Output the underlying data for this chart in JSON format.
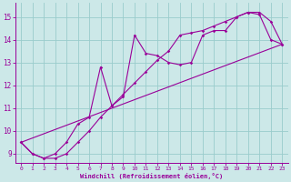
{
  "xlabel": "Windchill (Refroidissement éolien,°C)",
  "background_color": "#cce8e8",
  "line_color": "#990099",
  "grid_color": "#99cccc",
  "xlim": [
    -0.5,
    23.5
  ],
  "ylim": [
    8.6,
    15.6
  ],
  "xticks": [
    0,
    1,
    2,
    3,
    4,
    5,
    6,
    7,
    8,
    9,
    10,
    11,
    12,
    13,
    14,
    15,
    16,
    17,
    18,
    19,
    20,
    21,
    22,
    23
  ],
  "yticks": [
    9,
    10,
    11,
    12,
    13,
    14,
    15
  ],
  "line1_x": [
    0,
    1,
    2,
    3,
    4,
    5,
    6,
    7,
    8,
    9,
    10,
    11,
    12,
    13,
    14,
    15,
    16,
    17,
    18,
    19,
    20,
    21,
    22,
    23
  ],
  "line1_y": [
    9.5,
    9.0,
    8.8,
    8.8,
    9.0,
    9.5,
    10.0,
    10.6,
    11.1,
    11.6,
    12.1,
    12.6,
    13.1,
    13.5,
    14.2,
    14.3,
    14.4,
    14.6,
    14.8,
    15.0,
    15.2,
    15.1,
    14.0,
    13.8
  ],
  "line2_x": [
    0,
    1,
    2,
    3,
    4,
    5,
    6,
    7,
    8,
    9,
    10,
    11,
    12,
    13,
    14,
    15,
    16,
    17,
    18,
    19,
    20,
    21,
    22,
    23
  ],
  "line2_y": [
    9.5,
    9.0,
    8.8,
    9.0,
    9.5,
    10.3,
    10.6,
    12.8,
    11.1,
    11.5,
    14.2,
    13.4,
    13.3,
    13.0,
    12.9,
    13.0,
    14.2,
    14.4,
    14.4,
    15.0,
    15.2,
    15.2,
    14.8,
    13.8
  ],
  "line3_x": [
    0,
    23
  ],
  "line3_y": [
    9.5,
    13.8
  ]
}
